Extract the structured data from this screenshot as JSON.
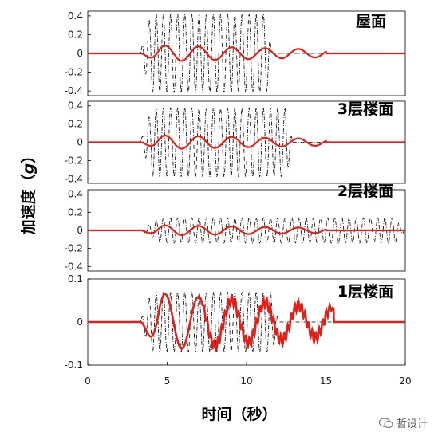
{
  "chart_data": {
    "type": "line",
    "xlabel": "时间（秒）",
    "ylabel": "加速度（",
    "ylabel_unit": "g",
    "ylabel_close": "）",
    "xlim": [
      0,
      20
    ],
    "xticks": [
      "0",
      "5",
      "10",
      "15",
      "20"
    ],
    "line_colors": {
      "dashed": "#000000",
      "solid": "#e0201a"
    },
    "panels": [
      {
        "title": "屋面",
        "ylim": [
          -0.45,
          0.45
        ],
        "yticks": [
          "0.4",
          "0.2",
          "0",
          "-0.2",
          "-0.4"
        ],
        "series": [
          {
            "style": "dash-dot",
            "env_peak": 0.42,
            "start": 3.3,
            "end": 11.6,
            "period": 0.45
          },
          {
            "style": "solid",
            "peak": 0.09,
            "start": 3.3,
            "end": 15,
            "period": 2.1
          }
        ]
      },
      {
        "title": "3层楼面",
        "ylim": [
          -0.45,
          0.45
        ],
        "yticks": [
          "0.4",
          "0.2",
          "0",
          "-0.2",
          "-0.4"
        ],
        "series": [
          {
            "style": "dash-dot",
            "env_peak": 0.38,
            "start": 3.3,
            "end": 12.9,
            "period": 0.45
          },
          {
            "style": "solid",
            "peak": 0.08,
            "start": 3.3,
            "end": 15,
            "period": 2.1
          }
        ]
      },
      {
        "title": "2层楼面",
        "ylim": [
          -0.45,
          0.45
        ],
        "yticks": [
          "0.4",
          "0.2",
          "0",
          "-0.2",
          "-0.4"
        ],
        "series": [
          {
            "style": "dash-dot",
            "env_peak": 0.14,
            "start": 3.3,
            "end": 20,
            "period": 0.45
          },
          {
            "style": "solid",
            "peak": 0.06,
            "start": 3.3,
            "end": 15,
            "period": 2.1
          }
        ]
      },
      {
        "title": "1层楼面",
        "ylim": [
          -0.1,
          0.1
        ],
        "yticks": [
          "0.1",
          "0",
          "-0.1"
        ],
        "series": [
          {
            "style": "dash-dot",
            "env_peak": 0.07,
            "start": 3.3,
            "end": 12,
            "period": 0.45
          },
          {
            "style": "solid",
            "peak": 0.07,
            "start": 3.3,
            "end": 15.5,
            "period": 2.1
          }
        ]
      }
    ]
  },
  "watermark": {
    "text": "哲设计"
  }
}
